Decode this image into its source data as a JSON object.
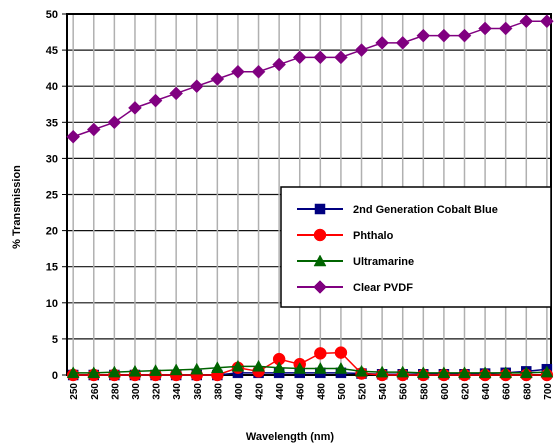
{
  "chart_data": {
    "type": "line",
    "xlabel": "Wavelength (nm)",
    "ylabel": "% Transmission",
    "x": [
      250,
      260,
      280,
      300,
      320,
      340,
      360,
      380,
      400,
      420,
      440,
      460,
      480,
      500,
      520,
      540,
      560,
      580,
      600,
      620,
      640,
      660,
      680,
      700
    ],
    "ylim": [
      0,
      50
    ],
    "yticks": [
      "0",
      "5",
      "10",
      "15",
      "20",
      "25",
      "30",
      "35",
      "40",
      "45",
      "50"
    ],
    "grid": true,
    "legend_position": "right",
    "series": [
      {
        "name": "2nd Generation Cobalt Blue",
        "color": "#000080",
        "marker": "square",
        "values": [
          0,
          0,
          0,
          0,
          0,
          0,
          0,
          0,
          0.3,
          0.3,
          0.3,
          0.3,
          0.3,
          0.3,
          0.2,
          0.1,
          0.1,
          0.1,
          0.1,
          0.1,
          0.2,
          0.3,
          0.5,
          0.8
        ]
      },
      {
        "name": "Phthalo",
        "color": "#ff0000",
        "marker": "circle",
        "values": [
          0,
          0,
          0,
          0,
          0,
          0,
          0,
          0,
          1,
          0.5,
          2.2,
          1.5,
          3,
          3.1,
          0.2,
          0,
          0,
          0,
          0,
          0,
          0,
          0,
          0,
          0
        ]
      },
      {
        "name": "Ultramarine",
        "color": "#006400",
        "marker": "triangle",
        "values": [
          0.3,
          0.3,
          0.4,
          0.5,
          0.6,
          0.7,
          0.8,
          1,
          1.2,
          1.2,
          1,
          0.9,
          0.9,
          0.9,
          0.5,
          0.4,
          0.4,
          0.3,
          0.3,
          0.3,
          0.3,
          0.3,
          0.3,
          0.4
        ]
      },
      {
        "name": "Clear PVDF",
        "color": "#800080",
        "marker": "diamond",
        "values": [
          33,
          34,
          35,
          37,
          38,
          39,
          40,
          41,
          42,
          42,
          43,
          44,
          44,
          44,
          45,
          46,
          46,
          47,
          47,
          47,
          48,
          48,
          49,
          49
        ]
      }
    ]
  }
}
